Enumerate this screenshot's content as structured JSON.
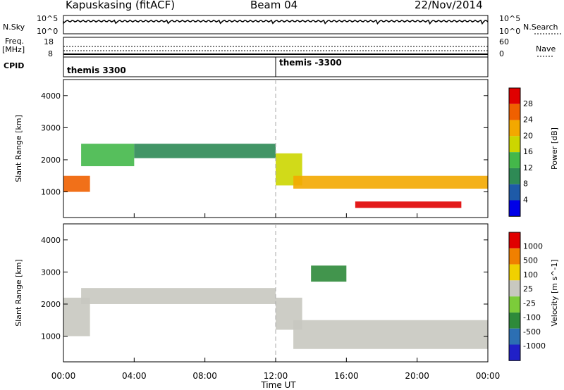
{
  "header": {
    "station": "Kapuskasing (fitACF)",
    "beam": "Beam 04",
    "date": "22/Nov/2014"
  },
  "side_labels": {
    "nsky": "N.Sky",
    "freq_line1": "Freq.",
    "freq_line2": "[MHz]",
    "cpid": "CPID",
    "nsearch": "N.Search",
    "nave": "Nave"
  },
  "nsky_ticks": [
    "10^5",
    "10^0"
  ],
  "nsearch_ticks": [
    "10^5",
    "10^0"
  ],
  "freq_ticks": [
    "18",
    "8"
  ],
  "nave_ticks": [
    "60",
    "0"
  ],
  "cpid_segments": [
    {
      "label": "themis 3300",
      "start": "00:00",
      "end": "12:00"
    },
    {
      "label": "themis -3300",
      "start": "12:00",
      "end": "24:00"
    }
  ],
  "colors": {
    "power_scale": [
      "#0000e8",
      "#1e5aa8",
      "#2e8a55",
      "#44b84a",
      "#ccd600",
      "#f3a800",
      "#f06000",
      "#e00000"
    ],
    "velocity_scale": [
      "#2020c8",
      "#2c6fb3",
      "#2e8a3a",
      "#7ccc3a",
      "#c8c8c0",
      "#f0d000",
      "#f08000",
      "#e00000"
    ]
  },
  "chart_data": [
    {
      "type": "heatmap",
      "title": "Power",
      "ylabel": "Slant Range [km]",
      "xlabel": "Time UT",
      "ylim": [
        200,
        4500
      ],
      "y_ticks": [
        "4000",
        "3000",
        "2000",
        "1000"
      ],
      "x_ticks": [
        "00:00",
        "04:00",
        "08:00",
        "12:00",
        "16:00",
        "20:00",
        "00:00"
      ],
      "colorbar_label": "Power [dB]",
      "colorbar_ticks": [
        "28",
        "24",
        "20",
        "16",
        "12",
        "8",
        "4"
      ],
      "bands": [
        {
          "t": [
            0.0,
            1.5
          ],
          "r": [
            1000,
            1500
          ],
          "level": 6
        },
        {
          "t": [
            1.0,
            4.0
          ],
          "r": [
            1800,
            2500
          ],
          "level": 3
        },
        {
          "t": [
            4.0,
            12.0
          ],
          "r": [
            2050,
            2500
          ],
          "level": 2
        },
        {
          "t": [
            12.0,
            13.5
          ],
          "r": [
            1200,
            2200
          ],
          "level": 4
        },
        {
          "t": [
            13.0,
            24.0
          ],
          "r": [
            1100,
            1500
          ],
          "level": 5
        },
        {
          "t": [
            16.5,
            22.5
          ],
          "r": [
            500,
            700
          ],
          "level": 7
        }
      ]
    },
    {
      "type": "heatmap",
      "title": "Velocity",
      "ylabel": "Slant Range [km]",
      "xlabel": "Time UT",
      "ylim": [
        200,
        4500
      ],
      "y_ticks": [
        "4000",
        "3000",
        "2000",
        "1000"
      ],
      "x_ticks": [
        "00:00",
        "04:00",
        "08:00",
        "12:00",
        "16:00",
        "20:00",
        "00:00"
      ],
      "colorbar_label": "Velocity [m s^-1]",
      "colorbar_ticks": [
        "1000",
        "500",
        "100",
        "25",
        "-25",
        "-100",
        "-500",
        "-1000"
      ],
      "bands": [
        {
          "t": [
            0.0,
            1.5
          ],
          "r": [
            1000,
            2200
          ],
          "level": 4
        },
        {
          "t": [
            1.0,
            12.0
          ],
          "r": [
            2000,
            2500
          ],
          "level": 4
        },
        {
          "t": [
            12.0,
            13.5
          ],
          "r": [
            1200,
            2200
          ],
          "level": 4
        },
        {
          "t": [
            13.0,
            24.0
          ],
          "r": [
            600,
            1500
          ],
          "level": 4
        },
        {
          "t": [
            14.0,
            16.0
          ],
          "r": [
            2700,
            3200
          ],
          "level": 2
        }
      ]
    }
  ]
}
